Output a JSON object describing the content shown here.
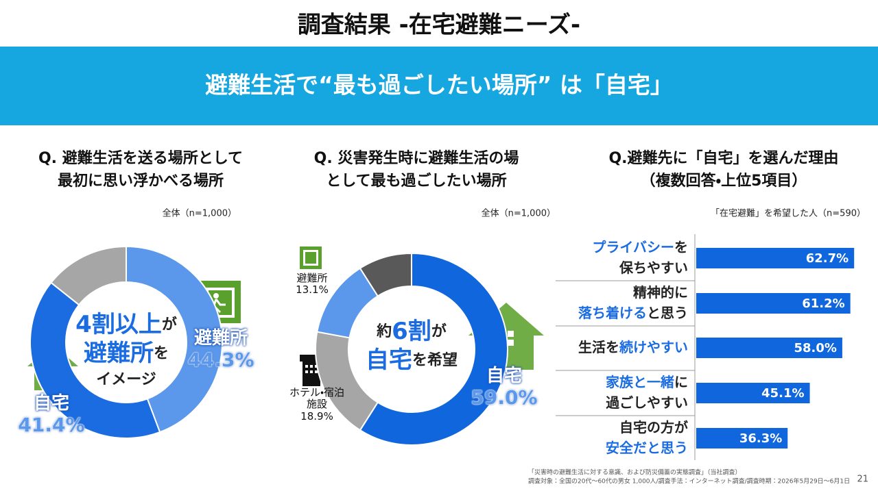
{
  "header": {
    "title": "調査結果 -在宅避難ニーズ-",
    "banner": "避難生活で“最も過ごしたい場所” は「自宅」"
  },
  "chart_data": [
    {
      "type": "donut",
      "title": [
        "Q. 避難生活を送る場所として",
        "最初に思い浮かべる場所"
      ],
      "note": "全体（n=1,000）",
      "center_text": [
        [
          {
            "text": "4割以上",
            "emphasis": true
          },
          {
            "text": "が",
            "emphasis": false
          }
        ],
        [
          {
            "text": "避難所",
            "emphasis": true
          },
          {
            "text": "を",
            "emphasis": false
          }
        ],
        [
          {
            "text": "イメージ",
            "emphasis": false
          }
        ]
      ],
      "categories": [
        "避難所",
        "自宅",
        null
      ],
      "values": [
        44.3,
        41.4,
        14.3
      ],
      "value_labels": [
        "44.3%",
        "41.4%",
        null
      ],
      "colors": [
        "#5b98eb",
        "#1a6ce0",
        "#a6a6a6"
      ]
    },
    {
      "type": "donut",
      "title": [
        "Q. 災害発生時に避難生活の場",
        "として最も過ごしたい場所"
      ],
      "note": "全体（n=1,000）",
      "center_text": [
        [
          {
            "text": "約",
            "emphasis": false
          },
          {
            "text": "6割",
            "emphasis": true
          },
          {
            "text": "が",
            "emphasis": false
          }
        ],
        [
          {
            "text": "自宅",
            "emphasis": true
          },
          {
            "text": "を希望",
            "emphasis": false
          }
        ]
      ],
      "categories": [
        "自宅",
        "ホテル・宿泊施設",
        "避難所",
        null
      ],
      "values": [
        59.0,
        18.9,
        13.1,
        9.0
      ],
      "value_labels": [
        "59.0%",
        "18.9%",
        "13.1%",
        null
      ],
      "colors": [
        "#1066dc",
        "#a6a6a6",
        "#5b98eb",
        "#595959"
      ]
    },
    {
      "type": "hbar",
      "title": [
        "Q.避難先に「自宅」を選んだ理由",
        "（複数回答・上位5項目）"
      ],
      "note": "「在宅避難」を希望した人（n=590）",
      "categories": [
        [
          [
            {
              "text": "プライバシー",
              "emphasis": true
            },
            {
              "text": "を",
              "emphasis": false
            }
          ],
          [
            {
              "text": "保ちやすい",
              "emphasis": false
            }
          ]
        ],
        [
          [
            {
              "text": "精神的に",
              "emphasis": false
            }
          ],
          [
            {
              "text": "落ち着ける",
              "emphasis": true
            },
            {
              "text": "と思う",
              "emphasis": false
            }
          ]
        ],
        [
          [
            {
              "text": "生活を",
              "emphasis": false
            },
            {
              "text": "続けやすい",
              "emphasis": true
            }
          ]
        ],
        [
          [
            {
              "text": "家族と一緒",
              "emphasis": true
            },
            {
              "text": "に",
              "emphasis": false
            }
          ],
          [
            {
              "text": "過ごしやすい",
              "emphasis": false
            }
          ]
        ],
        [
          [
            {
              "text": "自宅の方が",
              "emphasis": false
            }
          ],
          [
            {
              "text": "安全だと思う",
              "emphasis": true
            }
          ]
        ]
      ],
      "values": [
        62.7,
        61.2,
        58.0,
        45.1,
        36.3
      ],
      "value_labels": [
        "62.7%",
        "61.2%",
        "58.0%",
        "45.1%",
        "36.3%"
      ],
      "color": "#1066dc",
      "xlim": [
        0,
        70
      ]
    }
  ],
  "footer": {
    "source": "「災害時の避難生活に対する意識、および防災備蓄の実態調査」（当社調査）",
    "method": "調査対象：全国の20代～60代の男女 1,000人/調査手法：インターネット調査/調査時期：2026年5月29日～6月1日",
    "page": "21"
  }
}
